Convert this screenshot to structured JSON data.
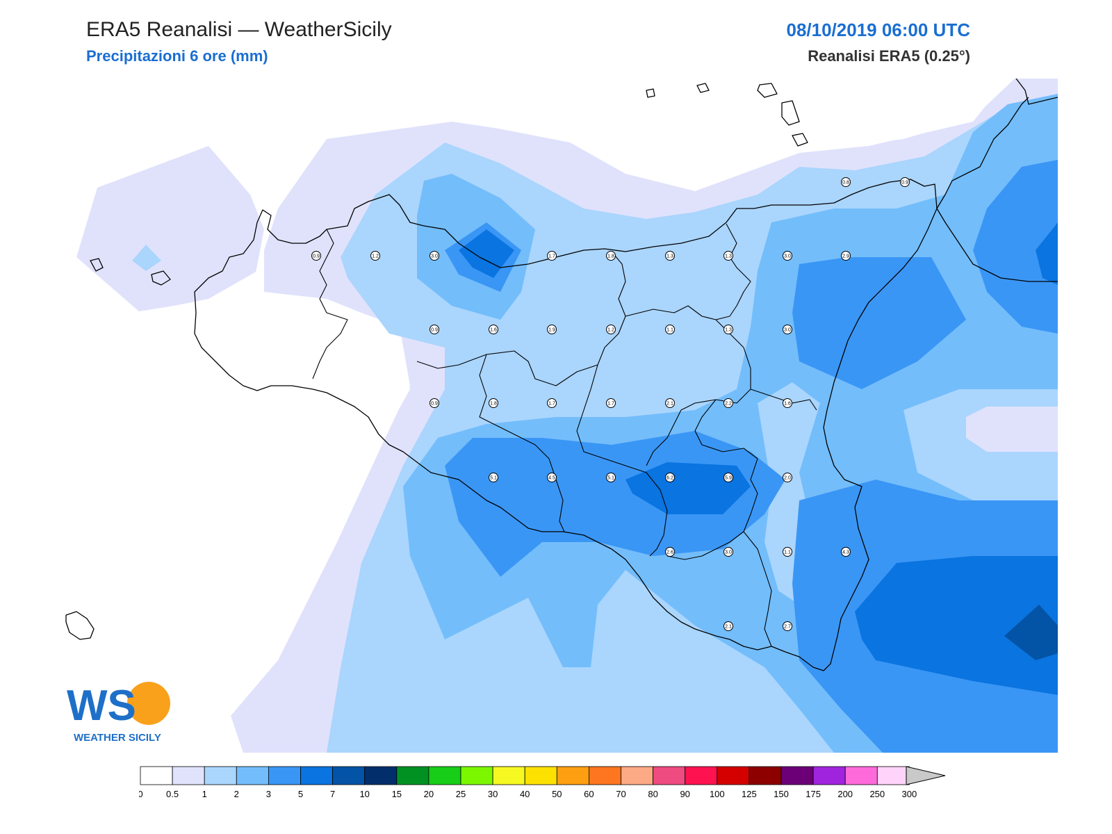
{
  "header": {
    "title": "ERA5 Reanalisi — WeatherSicily",
    "subtitle": "Precipitazioni 6 ore (mm)",
    "datetime": "08/10/2019 06:00 UTC",
    "source": "Reanalisi ERA5 (0.25°)"
  },
  "logo": {
    "text": "WS",
    "name": "WEATHER SICILY"
  },
  "colors": {
    "c0": "#ffffff",
    "c1": "#e0e2fc",
    "c2": "#aad5fd",
    "c3": "#73bdfb",
    "c4": "#3a96f5",
    "c5": "#0a74e0",
    "c6": "#0353a6",
    "outline": "#000000",
    "accent": "#1a6ed2"
  },
  "legend": {
    "ticks": [
      "0",
      "0.5",
      "1",
      "2",
      "3",
      "5",
      "7",
      "10",
      "15",
      "20",
      "25",
      "30",
      "40",
      "50",
      "60",
      "70",
      "80",
      "90",
      "100",
      "125",
      "150",
      "175",
      "200",
      "250",
      "300"
    ],
    "colors": [
      "#ffffff",
      "#e1e3fd",
      "#aad5fd",
      "#73bdfb",
      "#3a96f5",
      "#0a74e0",
      "#0353a6",
      "#032e6c",
      "#009122",
      "#18cd18",
      "#7bf700",
      "#f6f822",
      "#fde100",
      "#fe9f12",
      "#fe7620",
      "#fca985",
      "#ee4b80",
      "#fd1350",
      "#d40000",
      "#8c0000",
      "#6b0077",
      "#a024de",
      "#fe6ad9",
      "#ffd3fa"
    ]
  },
  "values": [
    {
      "v": "0.9"
    },
    {
      "v": "1.2"
    },
    {
      "v": "3.0"
    },
    {
      "v": "1.7"
    },
    {
      "v": "1.8"
    },
    {
      "v": "1.3"
    },
    {
      "v": "1.3"
    },
    {
      "v": "3.0"
    },
    {
      "v": "2.9"
    },
    {
      "v": "0.8"
    },
    {
      "v": "0.9"
    },
    {
      "v": "0.9"
    },
    {
      "v": "1.6"
    },
    {
      "v": "1.9"
    },
    {
      "v": "1.2"
    },
    {
      "v": "1.1"
    },
    {
      "v": "1.3"
    },
    {
      "v": "3.0"
    },
    {
      "v": "0.9"
    },
    {
      "v": "1.8"
    },
    {
      "v": "1.7"
    },
    {
      "v": "1.7"
    },
    {
      "v": "2.1"
    },
    {
      "v": "2.2"
    },
    {
      "v": "1.6"
    },
    {
      "v": "5.1"
    },
    {
      "v": "4.5"
    },
    {
      "v": "5.1"
    },
    {
      "v": "6.2"
    },
    {
      "v": "5.9"
    },
    {
      "v": "2.0"
    },
    {
      "v": "2.6"
    },
    {
      "v": "3.0"
    },
    {
      "v": "1.1"
    },
    {
      "v": "4.3"
    },
    {
      "v": "2.1"
    },
    {
      "v": "2.7"
    }
  ]
}
